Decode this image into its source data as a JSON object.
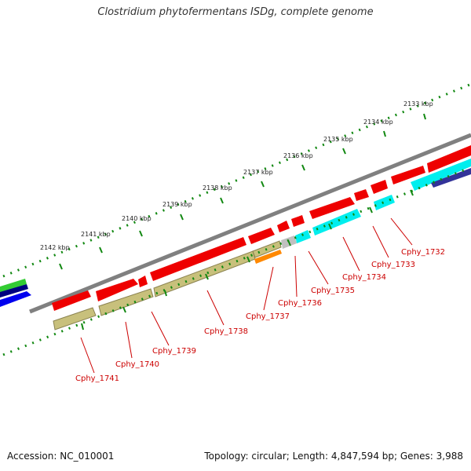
{
  "title": "Clostridium phytofermentans ISDg, complete genome",
  "accession_text": "Accession: NC_010001",
  "summary_text": "Topology: circular; Length: 4,847,594 bp; Genes: 3,988",
  "colors": {
    "backbone": "#808080",
    "ticks": "#118811",
    "gene_red": "#ee0000",
    "gene_olive": "#c8c07c",
    "gene_cyan": "#00eeee",
    "gene_orange": "#ff8800",
    "gene_gray": "#c0c0c0",
    "gene_navy": "#333399",
    "label_red": "#cc0000"
  },
  "kbp_labels": [
    "2133 kbp",
    "2134 kbp",
    "2135 kbp",
    "2136 kbp",
    "2137 kbp",
    "2138 kbp",
    "2139 kbp",
    "2140 kbp",
    "2141 kbp",
    "2142 kbp"
  ],
  "gene_labels": [
    "Cphy_1732",
    "Cphy_1733",
    "Cphy_1734",
    "Cphy_1735",
    "Cphy_1736",
    "Cphy_1737",
    "Cphy_1738",
    "Cphy_1739",
    "Cphy_1740",
    "Cphy_1741"
  ]
}
